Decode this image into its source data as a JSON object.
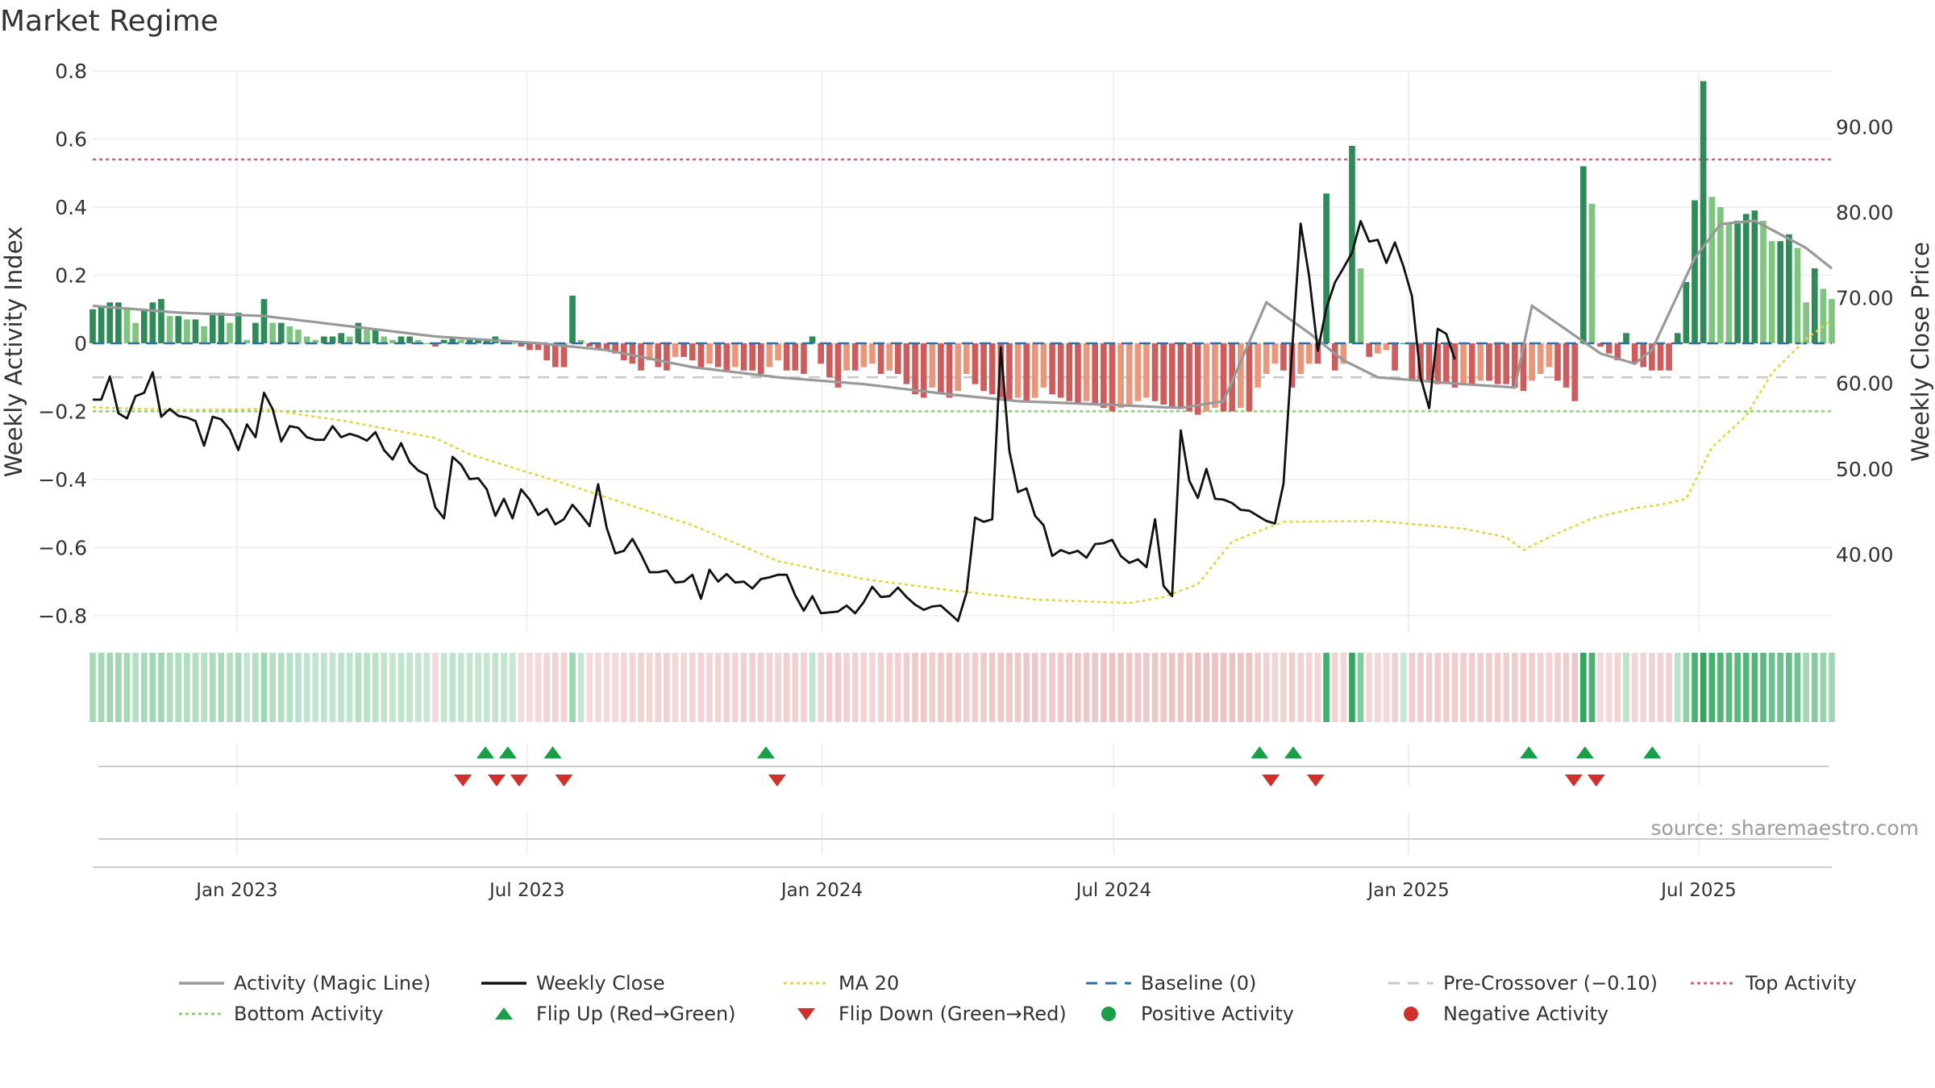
{
  "page": {
    "title": "Market Regime",
    "source": "source: sharemaestro.com"
  },
  "colors": {
    "activity_line": "#999999",
    "weekly_close": "#111111",
    "ma20": "#e6d33a",
    "baseline": "#2f6fa7",
    "pre_crossover": "#c8c8c8",
    "top_activity": "#d6607c",
    "bottom_activity": "#8fd16e",
    "pos_strong": "#2e8b57",
    "pos_weak": "#7fc47f",
    "neg_strong": "#cd5c5c",
    "neg_weak": "#e9967a",
    "flip_up": "#1a9e4a",
    "flip_down": "#d0312d"
  },
  "legend": [
    {
      "label": "Activity (Magic Line)",
      "icon": "line-solid-gray"
    },
    {
      "label": "Weekly Close",
      "icon": "line-solid-black"
    },
    {
      "label": "MA 20",
      "icon": "line-dotted-yellow"
    },
    {
      "label": "Baseline (0)",
      "icon": "line-dashed-blue"
    },
    {
      "label": "Pre-Crossover (−0.10)",
      "icon": "line-dashed-gray"
    },
    {
      "label": "Top Activity",
      "icon": "line-dotted-pink"
    },
    {
      "label": "Bottom Activity",
      "icon": "line-dotted-green"
    },
    {
      "label": "Flip Up (Red→Green)",
      "icon": "triangle-up-green"
    },
    {
      "label": "Flip Down (Green→Red)",
      "icon": "triangle-down-red"
    },
    {
      "label": "Positive Activity",
      "icon": "circle-green"
    },
    {
      "label": "Negative Activity",
      "icon": "circle-red"
    }
  ],
  "chart_data": {
    "type": "bar",
    "title": "Market Regime",
    "xlabel": "",
    "ylabel": "Weekly Activity Index",
    "y2label": "Weekly Close Price",
    "ylim": [
      -0.85,
      0.8
    ],
    "y2lim": [
      30.83,
      96.57
    ],
    "x_range": [
      "2022-10-03",
      "2025-09-22"
    ],
    "yticks": [
      0.8,
      0.6,
      0.4,
      0.2,
      0,
      -0.2,
      -0.4,
      -0.6,
      -0.8
    ],
    "ytick_labels": [
      "0.8",
      "0.6",
      "0.4",
      "0.2",
      "0",
      "−0.2",
      "−0.4",
      "−0.6",
      "−0.8"
    ],
    "y2ticks": [
      90,
      80,
      70,
      60,
      50,
      40
    ],
    "y2tick_labels": [
      "90.00",
      "80.00",
      "70.00",
      "60.00",
      "50.00",
      "40.00"
    ],
    "xticks": [
      "2023-01-01",
      "2023-07-01",
      "2024-01-01",
      "2024-07-01",
      "2025-01-01",
      "2025-07-01"
    ],
    "xtick_labels": [
      "Jan 2023",
      "Jul 2023",
      "Jan 2024",
      "Jul 2024",
      "Jan 2025",
      "Jul 2025"
    ],
    "reference_lines": {
      "baseline": 0,
      "pre_crossover": -0.1,
      "top_activity": 0.54,
      "bottom_activity": -0.2
    },
    "grid": true,
    "legend_position": "bottom",
    "series": [
      {
        "name": "Activity (Magic Line)",
        "kind": "activity-line",
        "key_points": [
          [
            0,
            0.11
          ],
          [
            10,
            0.09
          ],
          [
            20,
            0.08
          ],
          [
            30,
            0.05
          ],
          [
            40,
            0.02
          ],
          [
            52,
            0.0
          ],
          [
            60,
            -0.02
          ],
          [
            70,
            -0.07
          ],
          [
            80,
            -0.1
          ],
          [
            90,
            -0.12
          ],
          [
            100,
            -0.15
          ],
          [
            108,
            -0.17
          ],
          [
            118,
            -0.18
          ],
          [
            127,
            -0.19
          ],
          [
            132,
            -0.17
          ],
          [
            137,
            0.12
          ],
          [
            142,
            0.03
          ],
          [
            146,
            -0.05
          ],
          [
            150,
            -0.1
          ],
          [
            160,
            -0.12
          ],
          [
            166,
            -0.13
          ],
          [
            168,
            0.11
          ],
          [
            172,
            0.04
          ],
          [
            176,
            -0.03
          ],
          [
            180,
            -0.06
          ],
          [
            182,
            -0.02
          ],
          [
            187,
            0.25
          ],
          [
            190,
            0.35
          ],
          [
            194,
            0.36
          ],
          [
            197,
            0.32
          ],
          [
            200,
            0.28
          ],
          [
            203,
            0.22
          ]
        ]
      },
      {
        "name": "Weekly Close",
        "kind": "close-line",
        "values": [
          58.1,
          58.1,
          60.8,
          56.5,
          55.9,
          58.5,
          58.9,
          61.3,
          56.1,
          57,
          56.2,
          56,
          55.6,
          52.7,
          56.1,
          55.8,
          54.6,
          52.2,
          55.2,
          53.7,
          58.9,
          57,
          53.2,
          55,
          54.8,
          53.7,
          53.4,
          53.4,
          55,
          53.7,
          54.1,
          53.8,
          53.3,
          54.3,
          52.2,
          51.1,
          53,
          50.8,
          49.8,
          49.3,
          45.5,
          44.2,
          51.4,
          50.5,
          48.8,
          48.9,
          47.6,
          44.5,
          46.5,
          44.2,
          47.6,
          46.4,
          44.6,
          45.3,
          43.5,
          44.1,
          45.8,
          44.6,
          43.3,
          48.2,
          43.1,
          40.1,
          40.4,
          41.8,
          40,
          37.9,
          37.9,
          38.1,
          36.7,
          36.8,
          37.6,
          34.8,
          38.2,
          36.8,
          37.7,
          36.7,
          36.8,
          36,
          37.1,
          37.3,
          37.6,
          37.6,
          35.2,
          33.4,
          35.1,
          33.1,
          33.2,
          33.3,
          34,
          33.1,
          34.4,
          36.2,
          35,
          35.1,
          36.1,
          35,
          34.1,
          33.5,
          33.9,
          34,
          33.1,
          32.2,
          35.5,
          44.3,
          43.8,
          44.1,
          64.2,
          52.1,
          47.3,
          47.7,
          44.5,
          43.4,
          39.8,
          40.5,
          40.1,
          40.4,
          39.6,
          41.2,
          41.3,
          41.7,
          39.8,
          39,
          39.4,
          38.5,
          44.1,
          36.3,
          35.1,
          54.5,
          48.6,
          46.6,
          50,
          46.5,
          46.4,
          46,
          45.2,
          45.1,
          44.5,
          43.9,
          43.6,
          48.3,
          63.8,
          78.7,
          72.5,
          63.8,
          68.8,
          71.8,
          73.5,
          75.3,
          79,
          76.6,
          76.8,
          74.1,
          76.5,
          73.7,
          70.2,
          60.7,
          57.1,
          66.4,
          65.8,
          62.8
        ]
      },
      {
        "name": "MA 20",
        "kind": "ma-line",
        "key_points": [
          [
            0,
            57.2
          ],
          [
            10,
            56.9
          ],
          [
            20,
            57.0
          ],
          [
            30,
            55.5
          ],
          [
            40,
            53.6
          ],
          [
            44,
            51.7
          ],
          [
            55,
            48.3
          ],
          [
            65,
            45.0
          ],
          [
            70,
            43.4
          ],
          [
            80,
            39.2
          ],
          [
            90,
            37.1
          ],
          [
            100,
            35.8
          ],
          [
            110,
            34.7
          ],
          [
            121,
            34.3
          ],
          [
            125,
            35.0
          ],
          [
            129,
            36.5
          ],
          [
            133,
            41.5
          ],
          [
            139,
            43.8
          ],
          [
            150,
            43.9
          ],
          [
            160,
            43.0
          ],
          [
            165,
            42.0
          ],
          [
            167,
            40.5
          ],
          [
            170,
            42.0
          ],
          [
            175,
            44.2
          ],
          [
            180,
            45.4
          ],
          [
            183,
            45.8
          ],
          [
            186,
            46.5
          ],
          [
            189,
            52.5
          ],
          [
            193,
            56.2
          ],
          [
            196,
            61.2
          ],
          [
            200,
            65.2
          ],
          [
            203,
            67.4
          ],
          [
            206,
            67.9
          ],
          [
            209,
            67.5
          ]
        ]
      },
      {
        "name": "Weekly Activity Index",
        "kind": "activity-bars",
        "values": [
          0.1,
          0.11,
          0.12,
          0.12,
          0.1,
          0.06,
          0.1,
          0.12,
          0.13,
          0.08,
          0.08,
          0.07,
          0.07,
          0.05,
          0.09,
          0.09,
          0.06,
          0.09,
          0.01,
          0.06,
          0.13,
          0.06,
          0.06,
          0.05,
          0.04,
          0.02,
          0.01,
          0.02,
          0.02,
          0.03,
          0.02,
          0.06,
          0.04,
          0.04,
          0.02,
          0.01,
          0.02,
          0.02,
          0.01,
          0,
          -0.01,
          0.01,
          0.02,
          0.01,
          0.01,
          0.01,
          0.01,
          0.02,
          0.01,
          0,
          -0.01,
          -0.02,
          -0.02,
          -0.05,
          -0.07,
          -0.07,
          0.14,
          0.01,
          -0.01,
          -0.02,
          -0.02,
          -0.03,
          -0.05,
          -0.06,
          -0.08,
          -0.05,
          -0.07,
          -0.08,
          -0.04,
          -0.04,
          -0.05,
          -0.07,
          -0.06,
          -0.07,
          -0.08,
          -0.07,
          -0.08,
          -0.08,
          -0.09,
          -0.07,
          -0.05,
          -0.08,
          -0.08,
          -0.09,
          0.02,
          -0.06,
          -0.1,
          -0.13,
          -0.08,
          -0.08,
          -0.07,
          -0.06,
          -0.09,
          -0.08,
          -0.09,
          -0.12,
          -0.15,
          -0.16,
          -0.13,
          -0.15,
          -0.16,
          -0.14,
          -0.09,
          -0.12,
          -0.14,
          -0.15,
          -0.16,
          -0.17,
          -0.16,
          -0.17,
          -0.16,
          -0.13,
          -0.15,
          -0.16,
          -0.17,
          -0.18,
          -0.17,
          -0.18,
          -0.19,
          -0.2,
          -0.19,
          -0.18,
          -0.17,
          -0.16,
          -0.17,
          -0.18,
          -0.19,
          -0.19,
          -0.2,
          -0.21,
          -0.2,
          -0.19,
          -0.2,
          -0.2,
          -0.19,
          -0.2,
          -0.13,
          -0.09,
          -0.06,
          -0.08,
          -0.13,
          -0.09,
          -0.06,
          -0.06,
          0.44,
          -0.08,
          -0.06,
          0.58,
          0.22,
          -0.04,
          -0.03,
          -0.02,
          -0.08,
          0.0,
          -0.11,
          -0.11,
          -0.11,
          -0.12,
          -0.12,
          -0.13,
          -0.12,
          -0.12,
          -0.11,
          -0.11,
          -0.12,
          -0.12,
          -0.13,
          -0.14,
          -0.11,
          -0.09,
          -0.07,
          -0.11,
          -0.13,
          -0.17,
          0.52,
          0.41,
          -0.01,
          -0.03,
          -0.05,
          0.03,
          -0.06,
          -0.07,
          -0.08,
          -0.08,
          -0.08,
          0.03,
          0.18,
          0.42,
          0.77,
          0.43,
          0.4,
          0.35,
          0.36,
          0.38,
          0.39,
          0.36,
          0.3,
          0.3,
          0.32,
          0.28,
          0.12,
          0.22,
          0.16,
          0.13
        ]
      },
      {
        "name": "Flip Up (Red→Green)",
        "kind": "flip-up",
        "x": [
          "2023-06-05",
          "2023-06-19",
          "2023-07-17",
          "2023-11-27",
          "2024-09-30",
          "2024-10-21",
          "2025-03-17",
          "2025-04-21",
          "2025-06-02"
        ]
      },
      {
        "name": "Flip Down (Green→Red)",
        "kind": "flip-down",
        "x": [
          "2023-05-22",
          "2023-06-12",
          "2023-06-26",
          "2023-07-24",
          "2023-12-04",
          "2024-10-07",
          "2024-11-04",
          "2025-04-14",
          "2025-04-28"
        ]
      }
    ]
  }
}
